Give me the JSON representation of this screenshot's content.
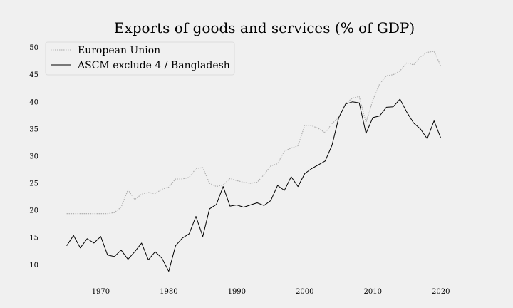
{
  "chart_data": {
    "type": "line",
    "title": "Exports of goods and services (% of GDP)",
    "xlabel": "",
    "ylabel": "",
    "xlim": [
      1962,
      2026
    ],
    "ylim": [
      6.5,
      51
    ],
    "xticks": [
      1970,
      1980,
      1990,
      2000,
      2010,
      2020
    ],
    "yticks": [
      10,
      15,
      20,
      25,
      30,
      35,
      40,
      45,
      50
    ],
    "grid": false,
    "legend": "top-left",
    "series": [
      {
        "name": "European Union",
        "color": "#aaaaaa",
        "style": "dotted",
        "x": [
          1965,
          1966,
          1967,
          1968,
          1969,
          1970,
          1971,
          1972,
          1973,
          1974,
          1975,
          1976,
          1977,
          1978,
          1979,
          1980,
          1981,
          1982,
          1983,
          1984,
          1985,
          1986,
          1987,
          1988,
          1989,
          1990,
          1991,
          1992,
          1993,
          1994,
          1995,
          1996,
          1997,
          1998,
          1999,
          2000,
          2001,
          2002,
          2003,
          2004,
          2005,
          2006,
          2007,
          2008,
          2009,
          2010,
          2011,
          2012,
          2013,
          2014,
          2015,
          2016,
          2017,
          2018,
          2019,
          2020
        ],
        "values": [
          19.4,
          19.4,
          19.4,
          19.4,
          19.4,
          19.4,
          19.4,
          19.6,
          20.6,
          23.8,
          22.0,
          23.0,
          23.3,
          23.1,
          23.9,
          24.3,
          25.8,
          25.8,
          26.1,
          27.7,
          27.9,
          25.0,
          24.4,
          24.7,
          25.9,
          25.5,
          25.2,
          25.0,
          25.2,
          26.6,
          28.2,
          28.6,
          30.9,
          31.5,
          31.9,
          35.7,
          35.6,
          35.1,
          34.3,
          36.0,
          37.1,
          39.7,
          40.7,
          41.0,
          36.2,
          40.3,
          43.3,
          44.8,
          45.0,
          45.7,
          47.2,
          46.8,
          48.3,
          49.1,
          49.3,
          46.6
        ]
      },
      {
        "name": "ASCM exclude 4 / Bangladesh",
        "color": "#000000",
        "style": "solid",
        "x": [
          1965,
          1966,
          1967,
          1968,
          1969,
          1970,
          1971,
          1972,
          1973,
          1974,
          1975,
          1976,
          1977,
          1978,
          1979,
          1980,
          1981,
          1982,
          1983,
          1984,
          1985,
          1986,
          1987,
          1988,
          1989,
          1990,
          1991,
          1992,
          1993,
          1994,
          1995,
          1996,
          1997,
          1998,
          1999,
          2000,
          2001,
          2002,
          2003,
          2004,
          2005,
          2006,
          2007,
          2008,
          2009,
          2010,
          2011,
          2012,
          2013,
          2014,
          2015,
          2016,
          2017,
          2018,
          2019,
          2020
        ],
        "values": [
          13.5,
          15.4,
          13.1,
          14.8,
          14.0,
          15.2,
          11.8,
          11.5,
          12.7,
          11.0,
          12.4,
          14.0,
          10.9,
          12.4,
          11.2,
          8.8,
          13.5,
          14.9,
          15.7,
          18.9,
          15.2,
          20.3,
          21.1,
          24.4,
          20.8,
          21.0,
          20.6,
          21.0,
          21.4,
          20.9,
          21.8,
          24.6,
          23.7,
          26.2,
          24.4,
          26.8,
          27.7,
          28.4,
          29.1,
          32.0,
          37.1,
          39.6,
          40.0,
          39.8,
          34.2,
          37.1,
          37.4,
          39.0,
          39.1,
          40.5,
          38.1,
          36.1,
          35.0,
          33.2,
          36.5,
          33.3
        ]
      }
    ]
  }
}
